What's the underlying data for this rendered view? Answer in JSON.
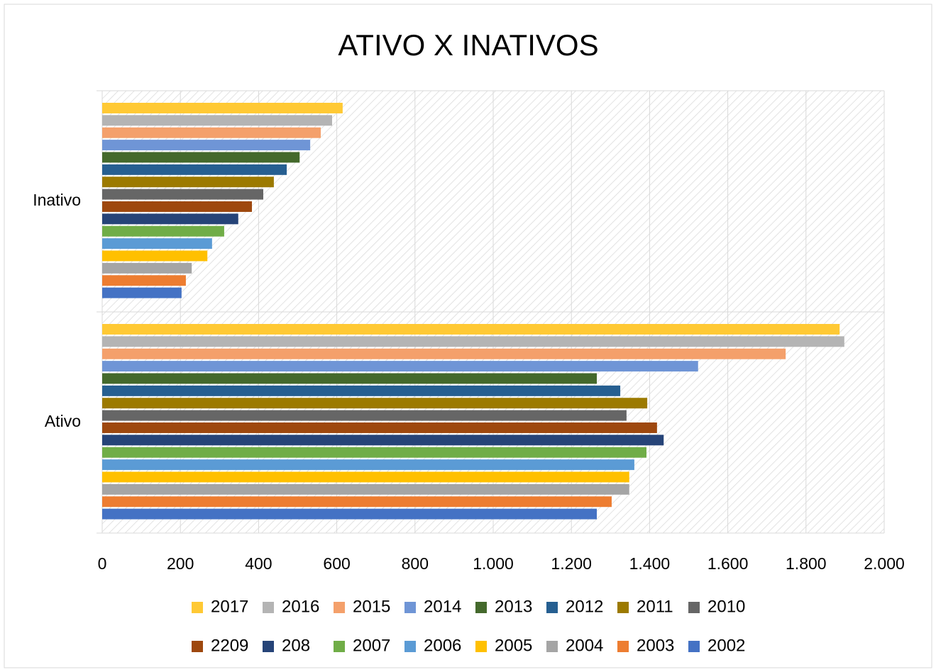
{
  "chart_data": {
    "type": "bar",
    "orientation": "horizontal",
    "title": "ATIVO X INATIVOS",
    "categories": [
      "Ativo",
      "Inativo"
    ],
    "series": [
      {
        "name": "2017",
        "color": "#ffc934",
        "values": [
          1886,
          615
        ]
      },
      {
        "name": "2016",
        "color": "#b4b4b4",
        "values": [
          1898,
          588
        ]
      },
      {
        "name": "2015",
        "color": "#f4a06b",
        "values": [
          1748,
          559
        ]
      },
      {
        "name": "2014",
        "color": "#6f95d6",
        "values": [
          1524,
          532
        ]
      },
      {
        "name": "2013",
        "color": "#44692c",
        "values": [
          1265,
          505
        ]
      },
      {
        "name": "2012",
        "color": "#265f91",
        "values": [
          1325,
          472
        ]
      },
      {
        "name": "2011",
        "color": "#9c7a00",
        "values": [
          1394,
          439
        ]
      },
      {
        "name": "2010",
        "color": "#666666",
        "values": [
          1341,
          412
        ]
      },
      {
        "name": "2209",
        "color": "#9e480e",
        "values": [
          1419,
          383
        ]
      },
      {
        "name": "208",
        "color": "#264478",
        "values": [
          1436,
          348
        ]
      },
      {
        "name": "2007",
        "color": "#70ad47",
        "values": [
          1392,
          312
        ]
      },
      {
        "name": "2006",
        "color": "#5b9bd5",
        "values": [
          1361,
          281
        ]
      },
      {
        "name": "2005",
        "color": "#ffc000",
        "values": [
          1348,
          269
        ]
      },
      {
        "name": "2004",
        "color": "#a5a5a5",
        "values": [
          1348,
          229
        ]
      },
      {
        "name": "2003",
        "color": "#ed7d31",
        "values": [
          1303,
          214
        ]
      },
      {
        "name": "2002",
        "color": "#4472c4",
        "values": [
          1265,
          203
        ]
      }
    ],
    "xlim": [
      0,
      2000
    ],
    "xticks": [
      0,
      200,
      400,
      600,
      800,
      {
        "value": 1000,
        "label": "1.000"
      },
      {
        "value": 1200,
        "label": "1.200"
      },
      {
        "value": 1400,
        "label": "1.400"
      },
      {
        "value": 1600,
        "label": "1.600"
      },
      {
        "value": 1800,
        "label": "1.800"
      },
      {
        "value": 2000,
        "label": "2.000"
      }
    ],
    "grid": true,
    "legend": "bottom"
  }
}
